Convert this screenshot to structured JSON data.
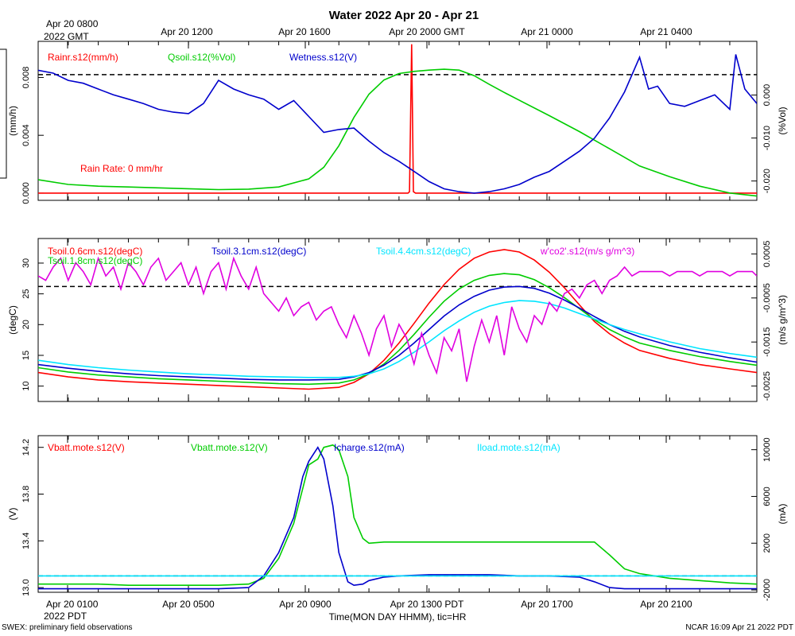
{
  "title": "Water 2022 Apr 20 - Apr 21",
  "top_axis_labels": [
    {
      "text": "Apr 20 0800",
      "sub": "2022 GMT"
    },
    {
      "text": "Apr 20 1200",
      "sub": ""
    },
    {
      "text": "Apr 20 1600",
      "sub": ""
    },
    {
      "text": "Apr 20 2000 GMT",
      "sub": ""
    },
    {
      "text": "Apr 21 0000",
      "sub": ""
    },
    {
      "text": "Apr 21 0400",
      "sub": ""
    }
  ],
  "bottom_axis_labels": [
    {
      "text": "Apr 20 0100",
      "sub": "2022 PDT"
    },
    {
      "text": "Apr 20 0500",
      "sub": ""
    },
    {
      "text": "Apr 20 0900",
      "sub": ""
    },
    {
      "text": "Apr 20 1300 PDT",
      "sub": ""
    },
    {
      "text": "Apr 20 1700",
      "sub": ""
    },
    {
      "text": "Apr 20 2100",
      "sub": ""
    }
  ],
  "xlabel": "Time(MON DAY HHMM), tic=HR",
  "footer_left": "SWEX: preliminary field observations",
  "footer_right": "NCAR 16:09 Apr 21 2022 PDT",
  "chart_data": [
    {
      "type": "line",
      "title": "",
      "ylabel_left": "(mm/h)",
      "ylabel_right": "(%Vol)",
      "left_ticks": [
        "0.000",
        "0.004",
        "0.008"
      ],
      "right_ticks": [
        "0.000",
        "-0.010",
        "-0.020"
      ],
      "left_ylim": [
        -0.0005,
        0.0105
      ],
      "right_ylim": [
        -0.0245,
        0.0125
      ],
      "annotation": "Rain Rate: 0 mm/hr",
      "ref_line_left": 0.0082,
      "x_unit": "hours since Apr 20 0000 PDT",
      "xlim": [
        0.0,
        23.9
      ],
      "series": [
        {
          "name": "Rainr.s12(mm/h)",
          "color": "#ff0000",
          "axis": "left",
          "x": [
            0,
            12.3,
            12.35,
            12.42,
            12.48,
            12.55,
            12.6,
            23.9
          ],
          "y": [
            0,
            0,
            0.0001,
            0.0103,
            0.0001,
            0,
            0,
            0
          ]
        },
        {
          "name": "Qsoil.s12(%Vol)",
          "color": "#00cc00",
          "axis": "right",
          "x": [
            0.0,
            1.0,
            2.0,
            3.0,
            4.0,
            5.0,
            6.0,
            7.0,
            8.0,
            9.0,
            9.5,
            10.0,
            10.5,
            11.0,
            11.5,
            12.0,
            12.5,
            13.0,
            13.5,
            14.0,
            14.5,
            15.0,
            15.5,
            16.0,
            17.0,
            18.0,
            19.0,
            20.0,
            21.0,
            22.0,
            23.0,
            23.9
          ],
          "y": [
            -0.0197,
            -0.0208,
            -0.0212,
            -0.0214,
            -0.0216,
            -0.0218,
            -0.022,
            -0.0219,
            -0.0214,
            -0.0195,
            -0.0168,
            -0.0118,
            -0.0052,
            0.0002,
            0.0035,
            0.005,
            0.0055,
            0.0058,
            0.006,
            0.0058,
            0.0045,
            0.0025,
            0.0006,
            -0.0012,
            -0.0048,
            -0.0085,
            -0.0125,
            -0.0165,
            -0.019,
            -0.0212,
            -0.0228,
            -0.0235
          ]
        },
        {
          "name": "Wetness.s12(V)",
          "color": "#0000cc",
          "axis": "left",
          "x": [
            0.0,
            0.5,
            1.0,
            1.5,
            2.0,
            2.5,
            3.0,
            3.5,
            4.0,
            4.5,
            5.0,
            5.5,
            6.0,
            6.5,
            7.0,
            7.5,
            8.0,
            8.5,
            9.0,
            9.5,
            10.0,
            10.5,
            11.0,
            11.5,
            12.0,
            12.5,
            13.0,
            13.5,
            14.0,
            14.5,
            15.0,
            15.5,
            16.0,
            16.5,
            17.0,
            17.5,
            18.0,
            18.5,
            19.0,
            19.5,
            20.0,
            20.3,
            20.6,
            21.0,
            21.5,
            22.0,
            22.5,
            23.0,
            23.2,
            23.5,
            23.9
          ],
          "y": [
            0.0085,
            0.0083,
            0.0078,
            0.0076,
            0.0072,
            0.0068,
            0.0065,
            0.0062,
            0.0058,
            0.0056,
            0.0055,
            0.0062,
            0.0078,
            0.0072,
            0.0068,
            0.0065,
            0.0058,
            0.0064,
            0.0053,
            0.0042,
            0.0044,
            0.0045,
            0.0036,
            0.0028,
            0.0022,
            0.0015,
            0.0008,
            0.0003,
            0.0001,
            0.0,
            0.0001,
            0.0003,
            0.0006,
            0.0011,
            0.0015,
            0.0022,
            0.0029,
            0.0038,
            0.0052,
            0.007,
            0.0094,
            0.0072,
            0.0074,
            0.0062,
            0.006,
            0.0064,
            0.0068,
            0.0058,
            0.0096,
            0.0072,
            0.0062
          ]
        }
      ]
    },
    {
      "type": "line",
      "title": "",
      "ylabel_left": "(degC)",
      "ylabel_right": "(m/s g/m^3)",
      "left_ticks": [
        "10",
        "15",
        "20",
        "25",
        "30"
      ],
      "right_ticks": [
        "0.0005",
        "-0.0005",
        "-0.0015",
        "-0.0025"
      ],
      "left_ylim": [
        7.5,
        34.0
      ],
      "right_ylim": [
        -0.00285,
        0.00085
      ],
      "ref_line_left": 26.2,
      "x_unit": "hours since Apr 20 0000 PDT",
      "xlim": [
        0.0,
        23.9
      ],
      "series": [
        {
          "name": "Tsoil.0.6cm.s12(degC)",
          "color": "#ff0000",
          "axis": "left",
          "x": [
            0.0,
            1.0,
            2.0,
            3.0,
            4.0,
            5.0,
            6.0,
            7.0,
            8.0,
            9.0,
            10.0,
            10.5,
            11.0,
            11.5,
            12.0,
            12.5,
            13.0,
            13.5,
            14.0,
            14.5,
            15.0,
            15.5,
            16.0,
            16.5,
            17.0,
            17.5,
            18.0,
            18.5,
            19.0,
            19.5,
            20.0,
            21.0,
            22.0,
            23.0,
            23.9
          ],
          "y": [
            12.2,
            11.5,
            11.0,
            10.7,
            10.5,
            10.3,
            10.1,
            9.9,
            9.7,
            9.5,
            9.8,
            10.6,
            12.0,
            14.2,
            17.0,
            20.2,
            23.5,
            26.5,
            29.0,
            30.8,
            31.8,
            32.2,
            31.8,
            30.5,
            28.5,
            26.0,
            23.2,
            20.5,
            18.5,
            17.0,
            15.8,
            14.5,
            13.5,
            12.8,
            12.2
          ]
        },
        {
          "name": "Tsoil.1.8cm.s12(degC)",
          "color": "#00cc00",
          "axis": "left",
          "x": [
            0.0,
            1.0,
            2.0,
            3.0,
            4.0,
            5.0,
            6.0,
            7.0,
            8.0,
            9.0,
            10.0,
            10.5,
            11.0,
            11.5,
            12.0,
            12.5,
            13.0,
            13.5,
            14.0,
            14.5,
            15.0,
            15.5,
            16.0,
            16.5,
            17.0,
            17.5,
            18.0,
            18.5,
            19.0,
            19.5,
            20.0,
            21.0,
            22.0,
            23.0,
            23.9
          ],
          "y": [
            13.0,
            12.3,
            11.8,
            11.5,
            11.2,
            11.0,
            10.8,
            10.6,
            10.4,
            10.3,
            10.5,
            11.0,
            12.0,
            13.6,
            15.8,
            18.4,
            21.2,
            23.8,
            25.8,
            27.2,
            28.0,
            28.3,
            28.1,
            27.3,
            26.0,
            24.4,
            22.6,
            20.8,
            19.2,
            18.0,
            17.0,
            15.8,
            14.8,
            14.0,
            13.4
          ]
        },
        {
          "name": "Tsoil.3.1cm.s12(degC)",
          "color": "#0000cc",
          "axis": "left",
          "x": [
            0.0,
            1.0,
            2.0,
            3.0,
            4.0,
            5.0,
            6.0,
            7.0,
            8.0,
            9.0,
            10.0,
            10.5,
            11.0,
            11.5,
            12.0,
            12.5,
            13.0,
            13.5,
            14.0,
            14.5,
            15.0,
            15.5,
            16.0,
            16.5,
            17.0,
            17.5,
            18.0,
            18.5,
            19.0,
            19.5,
            20.0,
            21.0,
            22.0,
            23.0,
            23.9
          ],
          "y": [
            13.5,
            12.9,
            12.4,
            12.0,
            11.7,
            11.5,
            11.3,
            11.1,
            11.0,
            11.0,
            11.1,
            11.5,
            12.2,
            13.4,
            15.0,
            17.0,
            19.2,
            21.4,
            23.2,
            24.6,
            25.6,
            26.1,
            26.2,
            25.9,
            25.1,
            24.0,
            22.7,
            21.3,
            20.0,
            18.9,
            18.0,
            16.6,
            15.5,
            14.6,
            13.9
          ]
        },
        {
          "name": "Tsoil.4.4cm.s12(degC)",
          "color": "#00e5ff",
          "axis": "left",
          "x": [
            0.0,
            1.0,
            2.0,
            3.0,
            4.0,
            5.0,
            6.0,
            7.0,
            8.0,
            9.0,
            10.0,
            10.5,
            11.0,
            11.5,
            12.0,
            12.5,
            13.0,
            13.5,
            14.0,
            14.5,
            15.0,
            15.5,
            16.0,
            16.5,
            17.0,
            17.5,
            18.0,
            18.5,
            19.0,
            19.5,
            20.0,
            21.0,
            22.0,
            23.0,
            23.9
          ],
          "y": [
            14.2,
            13.5,
            13.0,
            12.6,
            12.3,
            12.0,
            11.8,
            11.6,
            11.5,
            11.4,
            11.4,
            11.6,
            12.0,
            12.8,
            14.0,
            15.5,
            17.2,
            19.0,
            20.6,
            22.0,
            23.0,
            23.6,
            23.9,
            23.8,
            23.4,
            22.7,
            21.8,
            20.9,
            20.0,
            19.2,
            18.5,
            17.2,
            16.1,
            15.3,
            14.7
          ]
        },
        {
          "name": "w'co2'.s12(m/s g/m^3)",
          "color": "#e000e0",
          "axis": "right",
          "x": [
            0.0,
            0.25,
            0.5,
            0.75,
            1.0,
            1.25,
            1.5,
            1.75,
            2.0,
            2.25,
            2.5,
            2.75,
            3.0,
            3.25,
            3.5,
            3.75,
            4.0,
            4.25,
            4.5,
            4.75,
            5.0,
            5.25,
            5.5,
            5.75,
            6.0,
            6.25,
            6.5,
            6.75,
            7.0,
            7.25,
            7.5,
            7.75,
            8.0,
            8.25,
            8.5,
            8.75,
            9.0,
            9.25,
            9.5,
            9.75,
            10.0,
            10.25,
            10.5,
            10.75,
            11.0,
            11.25,
            11.5,
            11.75,
            12.0,
            12.25,
            12.5,
            12.75,
            13.0,
            13.25,
            13.5,
            13.75,
            14.0,
            14.25,
            14.5,
            14.75,
            15.0,
            15.25,
            15.5,
            15.75,
            16.0,
            16.25,
            16.5,
            16.75,
            17.0,
            17.25,
            17.5,
            17.75,
            18.0,
            18.25,
            18.5,
            18.75,
            19.0,
            19.25,
            19.5,
            19.75,
            20.0,
            20.25,
            20.5,
            20.75,
            21.0,
            21.25,
            21.5,
            21.75,
            22.0,
            22.25,
            22.5,
            22.75,
            23.0,
            23.25,
            23.5,
            23.75,
            23.9
          ],
          "y": [
            0.0,
            -0.0001,
            0.0002,
            0.0004,
            -0.0001,
            0.0003,
            0.0001,
            -0.0002,
            0.0004,
            0.0,
            0.0002,
            -0.0003,
            0.0003,
            0.0001,
            -0.0002,
            0.0002,
            0.0004,
            -0.0001,
            0.0001,
            0.0003,
            -0.0002,
            0.0002,
            -0.0004,
            0.0001,
            0.0003,
            -0.0003,
            0.0004,
            0.0,
            -0.0003,
            0.0002,
            -0.0004,
            -0.0006,
            -0.0008,
            -0.0005,
            -0.0009,
            -0.0007,
            -0.0006,
            -0.001,
            -0.0008,
            -0.0007,
            -0.0011,
            -0.0014,
            -0.0009,
            -0.0013,
            -0.0018,
            -0.0012,
            -0.0009,
            -0.0016,
            -0.0011,
            -0.0014,
            -0.002,
            -0.0013,
            -0.0018,
            -0.0022,
            -0.0014,
            -0.0017,
            -0.0012,
            -0.0024,
            -0.0016,
            -0.001,
            -0.0015,
            -0.0009,
            -0.0018,
            -0.0007,
            -0.0012,
            -0.0015,
            -0.0009,
            -0.0011,
            -0.0006,
            -0.0008,
            -0.0004,
            -0.0003,
            -0.0005,
            -0.0002,
            -0.0001,
            -0.0004,
            -0.0001,
            0.0,
            0.0002,
            0.0,
            0.0001,
            0.0001,
            0.0001,
            0.0001,
            0.0,
            0.0001,
            0.0001,
            0.0001,
            0.0,
            0.0001,
            0.0001,
            0.0001,
            0.0,
            0.0001,
            0.0001,
            0.0001,
            0.0
          ]
        }
      ]
    },
    {
      "type": "line",
      "title": "",
      "ylabel_left": "(V)",
      "ylabel_right": "(mA)",
      "left_ticks": [
        "13.0",
        "13.4",
        "13.8",
        "14.2"
      ],
      "right_ticks": [
        "-2000",
        "2000",
        "6000",
        "10000"
      ],
      "left_ylim": [
        12.96,
        14.3
      ],
      "right_ylim": [
        -2200.0,
        11200.0
      ],
      "ref_line_left": 13.1,
      "x_unit": "hours since Apr 20 0000 PDT",
      "xlim": [
        0.0,
        23.9
      ],
      "series": [
        {
          "name": "Vbatt.mote.s12(V)",
          "color": "#ff0000",
          "axis": "left",
          "x": [],
          "y": []
        },
        {
          "name": "Vbatt.mote.s12(V)",
          "color": "#00cc00",
          "axis": "left",
          "x": [
            0.0,
            1.0,
            2.0,
            3.0,
            4.0,
            5.0,
            6.0,
            7.0,
            7.5,
            8.0,
            8.5,
            8.8,
            9.0,
            9.3,
            9.5,
            9.8,
            10.0,
            10.3,
            10.5,
            10.8,
            11.0,
            11.5,
            12.0,
            13.0,
            14.0,
            15.0,
            16.0,
            17.0,
            18.0,
            18.5,
            19.0,
            19.5,
            20.0,
            20.5,
            21.0,
            22.0,
            23.0,
            23.9
          ],
          "y": [
            13.03,
            13.03,
            13.03,
            13.02,
            13.02,
            13.02,
            13.02,
            13.03,
            13.08,
            13.25,
            13.55,
            13.85,
            14.05,
            14.1,
            14.2,
            14.22,
            14.18,
            13.95,
            13.6,
            13.42,
            13.38,
            13.39,
            13.39,
            13.39,
            13.39,
            13.39,
            13.39,
            13.39,
            13.39,
            13.39,
            13.28,
            13.16,
            13.12,
            13.1,
            13.08,
            13.06,
            13.04,
            13.03
          ]
        },
        {
          "name": "Icharge.s12(mA)",
          "color": "#0000cc",
          "axis": "left",
          "x": [
            0.0,
            1.0,
            2.0,
            3.0,
            4.0,
            5.0,
            6.0,
            7.0,
            7.5,
            8.0,
            8.5,
            8.8,
            9.0,
            9.3,
            9.5,
            9.8,
            10.0,
            10.3,
            10.5,
            10.8,
            11.0,
            11.5,
            12.0,
            13.0,
            14.0,
            15.0,
            16.0,
            17.0,
            18.0,
            18.5,
            19.0,
            19.5,
            20.0,
            20.5,
            21.0,
            22.0,
            23.0,
            23.9
          ],
          "y": [
            12.99,
            12.99,
            12.99,
            12.99,
            12.99,
            12.99,
            12.99,
            13.0,
            13.1,
            13.3,
            13.6,
            13.95,
            14.08,
            14.2,
            14.1,
            13.7,
            13.3,
            13.05,
            13.02,
            13.03,
            13.06,
            13.09,
            13.1,
            13.11,
            13.11,
            13.11,
            13.1,
            13.1,
            13.09,
            13.05,
            13.0,
            12.99,
            12.99,
            12.99,
            12.99,
            12.99,
            12.99,
            12.99
          ]
        },
        {
          "name": "Iload.mote.s12(mA)",
          "color": "#00e5ff",
          "axis": "left",
          "x": [
            0.0,
            23.9
          ],
          "y": [
            13.1,
            13.1
          ]
        }
      ]
    }
  ]
}
